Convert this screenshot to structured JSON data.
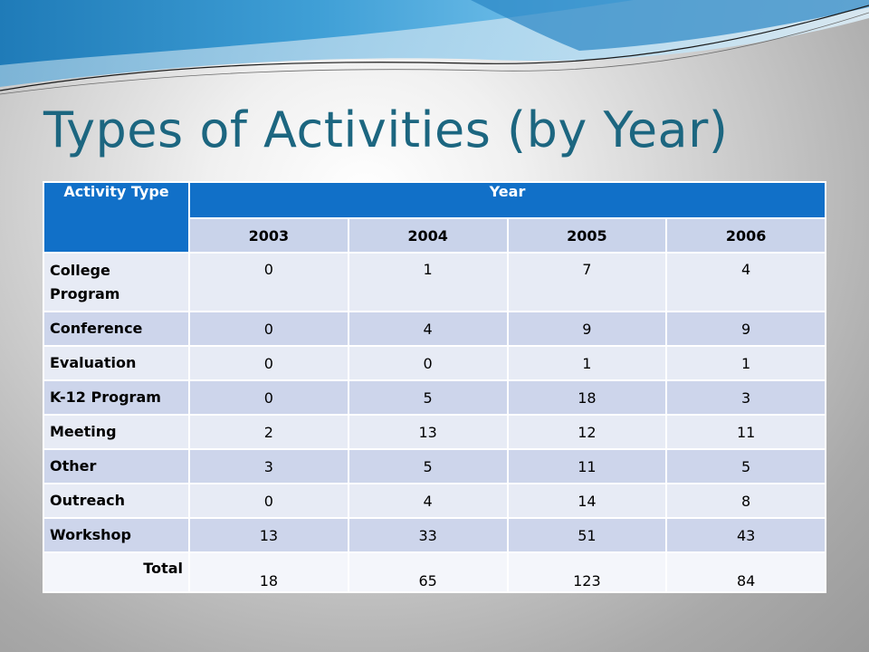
{
  "slide": {
    "title": "Types of Activities (by Year)"
  },
  "table": {
    "header_activity": "Activity Type",
    "header_year": "Year",
    "years": [
      "2003",
      "2004",
      "2005",
      "2006"
    ],
    "rows": [
      {
        "label": "College Program",
        "values": [
          "0",
          "1",
          "7",
          "4"
        ]
      },
      {
        "label": "Conference",
        "values": [
          "0",
          "4",
          "9",
          "9"
        ]
      },
      {
        "label": "Evaluation",
        "values": [
          "0",
          "0",
          "1",
          "1"
        ]
      },
      {
        "label": "K-12 Program",
        "values": [
          "0",
          "5",
          "18",
          "3"
        ]
      },
      {
        "label": "Meeting",
        "values": [
          "2",
          "13",
          "12",
          "11"
        ]
      },
      {
        "label": "Other",
        "values": [
          "3",
          "5",
          "11",
          "5"
        ]
      },
      {
        "label": "Outreach",
        "values": [
          "0",
          "4",
          "14",
          "8"
        ]
      },
      {
        "label": "Workshop",
        "values": [
          "13",
          "33",
          "51",
          "43"
        ]
      }
    ],
    "total": {
      "label": "Total",
      "values": [
        "18",
        "65",
        "123",
        "84"
      ]
    }
  },
  "colors": {
    "title": "#1c6680",
    "header_blue": "#1170c8",
    "row_light": "#e7ebf5",
    "row_dark": "#cdd5eb"
  }
}
